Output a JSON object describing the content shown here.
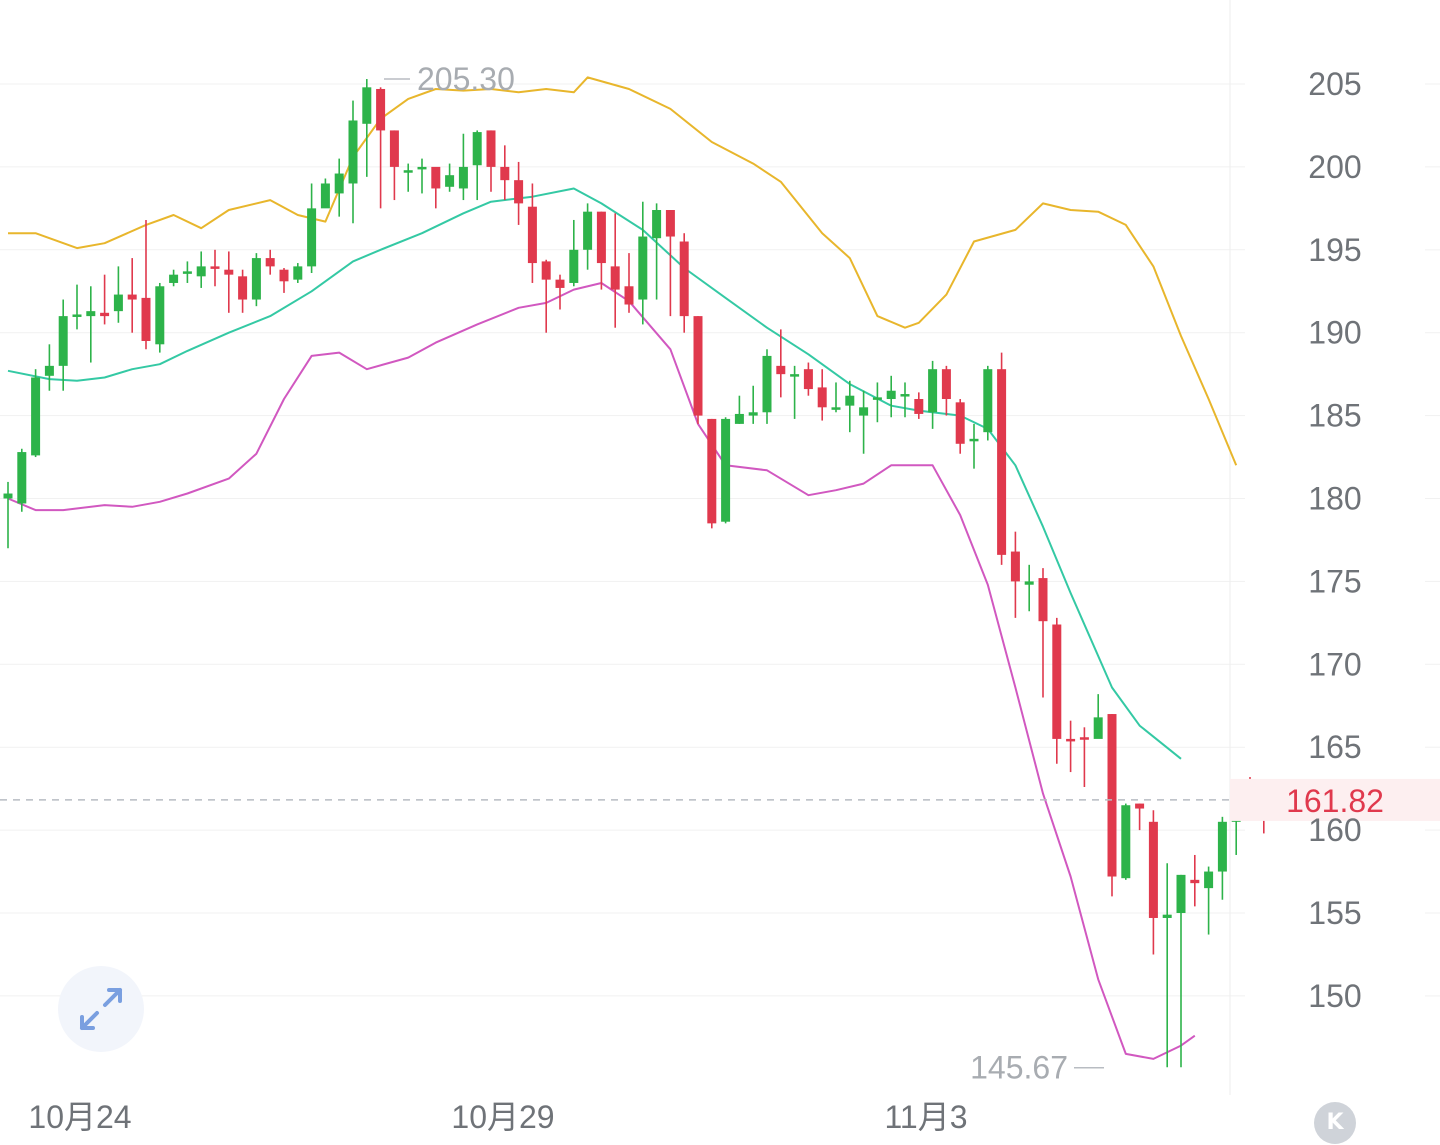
{
  "chart_data": {
    "type": "candlestick",
    "y_axis_ticks": [
      "205",
      "200",
      "195",
      "190",
      "185",
      "180",
      "175",
      "170",
      "165",
      "160",
      "155",
      "150"
    ],
    "ylim": [
      144,
      210
    ],
    "x_axis_labels": [
      "10月24",
      "10月29",
      "11月3"
    ],
    "last_price": "161.82",
    "high_marker": "205.30",
    "low_marker": "145.67",
    "colors": {
      "up": "#2db34a",
      "down": "#e0394d",
      "upper_band": "#e8b62c",
      "middle_band": "#34c9a4",
      "lower_band": "#d158c0",
      "price_line": "#b8bcc2"
    },
    "candles": [
      [
        180.0,
        180.3,
        181.0,
        177.0
      ],
      [
        179.7,
        182.8,
        183.0,
        179.2
      ],
      [
        182.6,
        187.3,
        187.8,
        182.5
      ],
      [
        187.4,
        188.0,
        189.3,
        186.5
      ],
      [
        188.0,
        191.0,
        192.0,
        186.5
      ],
      [
        191.0,
        191.1,
        192.9,
        190.2
      ],
      [
        191.0,
        191.3,
        192.8,
        188.2
      ],
      [
        191.2,
        191.0,
        193.5,
        190.5
      ],
      [
        191.3,
        192.3,
        194.0,
        190.6
      ],
      [
        192.3,
        192.0,
        194.5,
        190.0
      ],
      [
        192.1,
        189.5,
        196.8,
        189.0
      ],
      [
        189.3,
        192.8,
        193.0,
        188.8
      ],
      [
        193.0,
        193.5,
        193.8,
        192.8
      ],
      [
        193.6,
        193.7,
        194.3,
        193.0
      ],
      [
        193.4,
        194.0,
        194.9,
        192.7
      ],
      [
        194.0,
        193.9,
        195.0,
        192.8
      ],
      [
        193.8,
        193.5,
        194.9,
        191.2
      ],
      [
        193.4,
        192.0,
        193.8,
        191.2
      ],
      [
        192.0,
        194.5,
        194.8,
        191.6
      ],
      [
        194.5,
        194.0,
        195.0,
        193.5
      ],
      [
        193.8,
        193.1,
        193.9,
        192.4
      ],
      [
        193.2,
        194.0,
        194.2,
        193.0
      ],
      [
        194.0,
        197.5,
        199.0,
        193.6
      ],
      [
        197.5,
        199.0,
        199.3,
        198.0
      ],
      [
        198.4,
        199.6,
        200.5,
        197.0
      ],
      [
        199.0,
        202.8,
        204.0,
        196.6
      ],
      [
        202.6,
        204.8,
        205.3,
        199.4
      ],
      [
        204.7,
        202.2,
        204.8,
        197.5
      ],
      [
        202.2,
        200.0,
        202.2,
        198.0
      ],
      [
        199.8,
        199.8,
        200.2,
        198.5
      ],
      [
        199.9,
        200.0,
        200.5,
        198.4
      ],
      [
        200.0,
        198.7,
        199.8,
        197.5
      ],
      [
        198.8,
        199.5,
        200.2,
        198.5
      ],
      [
        198.7,
        200.0,
        202.0,
        198.0
      ],
      [
        200.1,
        202.1,
        202.2,
        198.0
      ],
      [
        202.2,
        200.0,
        202.2,
        198.5
      ],
      [
        200.0,
        199.2,
        201.3,
        198.0
      ],
      [
        199.2,
        197.8,
        200.3,
        196.5
      ],
      [
        197.6,
        194.2,
        199.0,
        193.0
      ],
      [
        194.3,
        193.2,
        194.4,
        190.0
      ],
      [
        193.2,
        192.7,
        193.5,
        191.4
      ],
      [
        193.0,
        195.0,
        196.8,
        192.8
      ],
      [
        195.0,
        197.3,
        197.8,
        193.8
      ],
      [
        197.3,
        194.2,
        197.3,
        192.6
      ],
      [
        194.0,
        192.6,
        197.2,
        190.3
      ],
      [
        192.8,
        191.7,
        194.8,
        191.2
      ],
      [
        192.0,
        195.8,
        197.9,
        190.5
      ],
      [
        195.7,
        197.4,
        197.8,
        192.0
      ],
      [
        197.4,
        195.8,
        197.4,
        191.0
      ],
      [
        195.5,
        191.0,
        196.0,
        190.0
      ],
      [
        191.0,
        185.0,
        191.0,
        184.5
      ],
      [
        184.8,
        178.5,
        184.8,
        178.2
      ],
      [
        178.6,
        184.8,
        184.9,
        178.5
      ],
      [
        184.5,
        185.1,
        186.2,
        184.5
      ],
      [
        185.0,
        185.2,
        186.8,
        184.5
      ],
      [
        185.2,
        188.6,
        189.0,
        184.5
      ],
      [
        188.0,
        187.5,
        190.2,
        186.1
      ],
      [
        187.4,
        187.5,
        188.0,
        184.8
      ],
      [
        187.8,
        186.6,
        188.2,
        186.2
      ],
      [
        186.7,
        185.5,
        187.8,
        184.7
      ],
      [
        185.4,
        185.5,
        187.0,
        185.2
      ],
      [
        185.6,
        186.2,
        187.1,
        184.0
      ],
      [
        185.0,
        185.5,
        186.5,
        182.7
      ],
      [
        186.0,
        186.1,
        187.0,
        184.6
      ],
      [
        186.0,
        186.5,
        187.4,
        184.9
      ],
      [
        186.2,
        186.3,
        187.0,
        184.9
      ],
      [
        186.0,
        185.1,
        186.4,
        184.8
      ],
      [
        185.2,
        187.8,
        188.3,
        184.2
      ],
      [
        187.8,
        186.0,
        188.0,
        185.0
      ],
      [
        185.8,
        183.3,
        186.0,
        182.7
      ],
      [
        183.5,
        183.6,
        184.5,
        181.8
      ],
      [
        184.0,
        187.8,
        188.0,
        183.5
      ],
      [
        187.8,
        176.6,
        188.8,
        176.0
      ],
      [
        176.8,
        175.0,
        178.0,
        172.8
      ],
      [
        174.8,
        175.0,
        176.0,
        173.2
      ],
      [
        175.2,
        172.6,
        175.8,
        168.0
      ],
      [
        172.4,
        165.5,
        172.8,
        164.0
      ],
      [
        165.5,
        165.4,
        166.6,
        163.5
      ],
      [
        165.6,
        165.5,
        166.2,
        162.6
      ],
      [
        165.5,
        166.8,
        168.2,
        165.6
      ],
      [
        167.0,
        157.2,
        167.0,
        156.0
      ],
      [
        157.1,
        161.5,
        161.6,
        157.0
      ],
      [
        161.6,
        161.3,
        161.6,
        160.0
      ],
      [
        160.5,
        154.7,
        161.2,
        152.5
      ],
      [
        154.7,
        154.9,
        158.0,
        145.7
      ],
      [
        155.0,
        157.3,
        157.3,
        145.7
      ],
      [
        157.0,
        156.8,
        158.5,
        155.4
      ],
      [
        156.5,
        157.5,
        157.8,
        153.7
      ],
      [
        157.5,
        160.5,
        160.8,
        155.8
      ],
      [
        160.5,
        162.5,
        163.0,
        158.5
      ],
      [
        162.2,
        162.0,
        163.2,
        160.8
      ],
      [
        162.0,
        161.8,
        162.0,
        159.8
      ]
    ],
    "upper_band": [
      [
        0,
        196.0
      ],
      [
        2,
        196.0
      ],
      [
        5,
        195.1
      ],
      [
        7,
        195.4
      ],
      [
        10,
        196.5
      ],
      [
        12,
        197.1
      ],
      [
        14,
        196.3
      ],
      [
        16,
        197.4
      ],
      [
        19,
        198.0
      ],
      [
        21,
        197.1
      ],
      [
        23,
        196.7
      ],
      [
        25,
        200.6
      ],
      [
        27,
        202.9
      ],
      [
        29,
        204.1
      ],
      [
        31,
        204.7
      ],
      [
        33,
        204.6
      ],
      [
        35,
        204.7
      ],
      [
        37,
        204.5
      ],
      [
        39,
        204.7
      ],
      [
        41,
        204.5
      ],
      [
        42,
        205.4
      ],
      [
        45,
        204.7
      ],
      [
        48,
        203.5
      ],
      [
        51,
        201.5
      ],
      [
        54,
        200.2
      ],
      [
        56,
        199.1
      ],
      [
        59,
        196.0
      ],
      [
        61,
        194.5
      ],
      [
        63,
        191.0
      ],
      [
        65,
        190.3
      ],
      [
        66,
        190.6
      ],
      [
        68,
        192.3
      ],
      [
        70,
        195.5
      ],
      [
        73,
        196.2
      ],
      [
        75,
        197.8
      ],
      [
        77,
        197.4
      ],
      [
        79,
        197.3
      ],
      [
        81,
        196.5
      ],
      [
        83,
        194.0
      ],
      [
        85,
        189.8
      ],
      [
        87,
        186.0
      ],
      [
        89,
        182.0
      ]
    ],
    "middle_band": [
      [
        0,
        187.7
      ],
      [
        3,
        187.2
      ],
      [
        5,
        187.1
      ],
      [
        7,
        187.3
      ],
      [
        9,
        187.8
      ],
      [
        11,
        188.1
      ],
      [
        13,
        188.9
      ],
      [
        16,
        190.0
      ],
      [
        19,
        191.0
      ],
      [
        22,
        192.5
      ],
      [
        25,
        194.3
      ],
      [
        27,
        195.0
      ],
      [
        30,
        196.0
      ],
      [
        33,
        197.2
      ],
      [
        35,
        197.9
      ],
      [
        38,
        198.2
      ],
      [
        41,
        198.7
      ],
      [
        43,
        197.8
      ],
      [
        46,
        196.2
      ],
      [
        49,
        193.9
      ],
      [
        52,
        192.1
      ],
      [
        55,
        190.3
      ],
      [
        58,
        188.7
      ],
      [
        61,
        186.9
      ],
      [
        64,
        185.6
      ],
      [
        66,
        185.3
      ],
      [
        69,
        185.0
      ],
      [
        71,
        184.2
      ],
      [
        73,
        182.0
      ],
      [
        75,
        178.3
      ],
      [
        77,
        174.3
      ],
      [
        80,
        168.6
      ],
      [
        82,
        166.3
      ],
      [
        85,
        164.3
      ]
    ],
    "lower_band": [
      [
        0,
        180.0
      ],
      [
        2,
        179.3
      ],
      [
        4,
        179.3
      ],
      [
        7,
        179.6
      ],
      [
        9,
        179.5
      ],
      [
        11,
        179.8
      ],
      [
        13,
        180.3
      ],
      [
        16,
        181.2
      ],
      [
        18,
        182.7
      ],
      [
        20,
        186.0
      ],
      [
        22,
        188.6
      ],
      [
        24,
        188.8
      ],
      [
        26,
        187.8
      ],
      [
        29,
        188.5
      ],
      [
        31,
        189.4
      ],
      [
        34,
        190.5
      ],
      [
        37,
        191.5
      ],
      [
        39,
        191.8
      ],
      [
        41,
        192.6
      ],
      [
        43,
        193.0
      ],
      [
        45,
        191.9
      ],
      [
        48,
        189.0
      ],
      [
        50,
        184.5
      ],
      [
        52,
        182.0
      ],
      [
        55,
        181.7
      ],
      [
        58,
        180.2
      ],
      [
        60,
        180.5
      ],
      [
        62,
        180.9
      ],
      [
        64,
        182.0
      ],
      [
        67,
        182.0
      ],
      [
        69,
        179.0
      ],
      [
        71,
        174.8
      ],
      [
        73,
        168.6
      ],
      [
        75,
        162.2
      ],
      [
        77,
        157.2
      ],
      [
        79,
        151.0
      ],
      [
        81,
        146.5
      ],
      [
        83,
        146.2
      ],
      [
        85,
        147.0
      ],
      [
        86,
        147.6
      ]
    ]
  }
}
